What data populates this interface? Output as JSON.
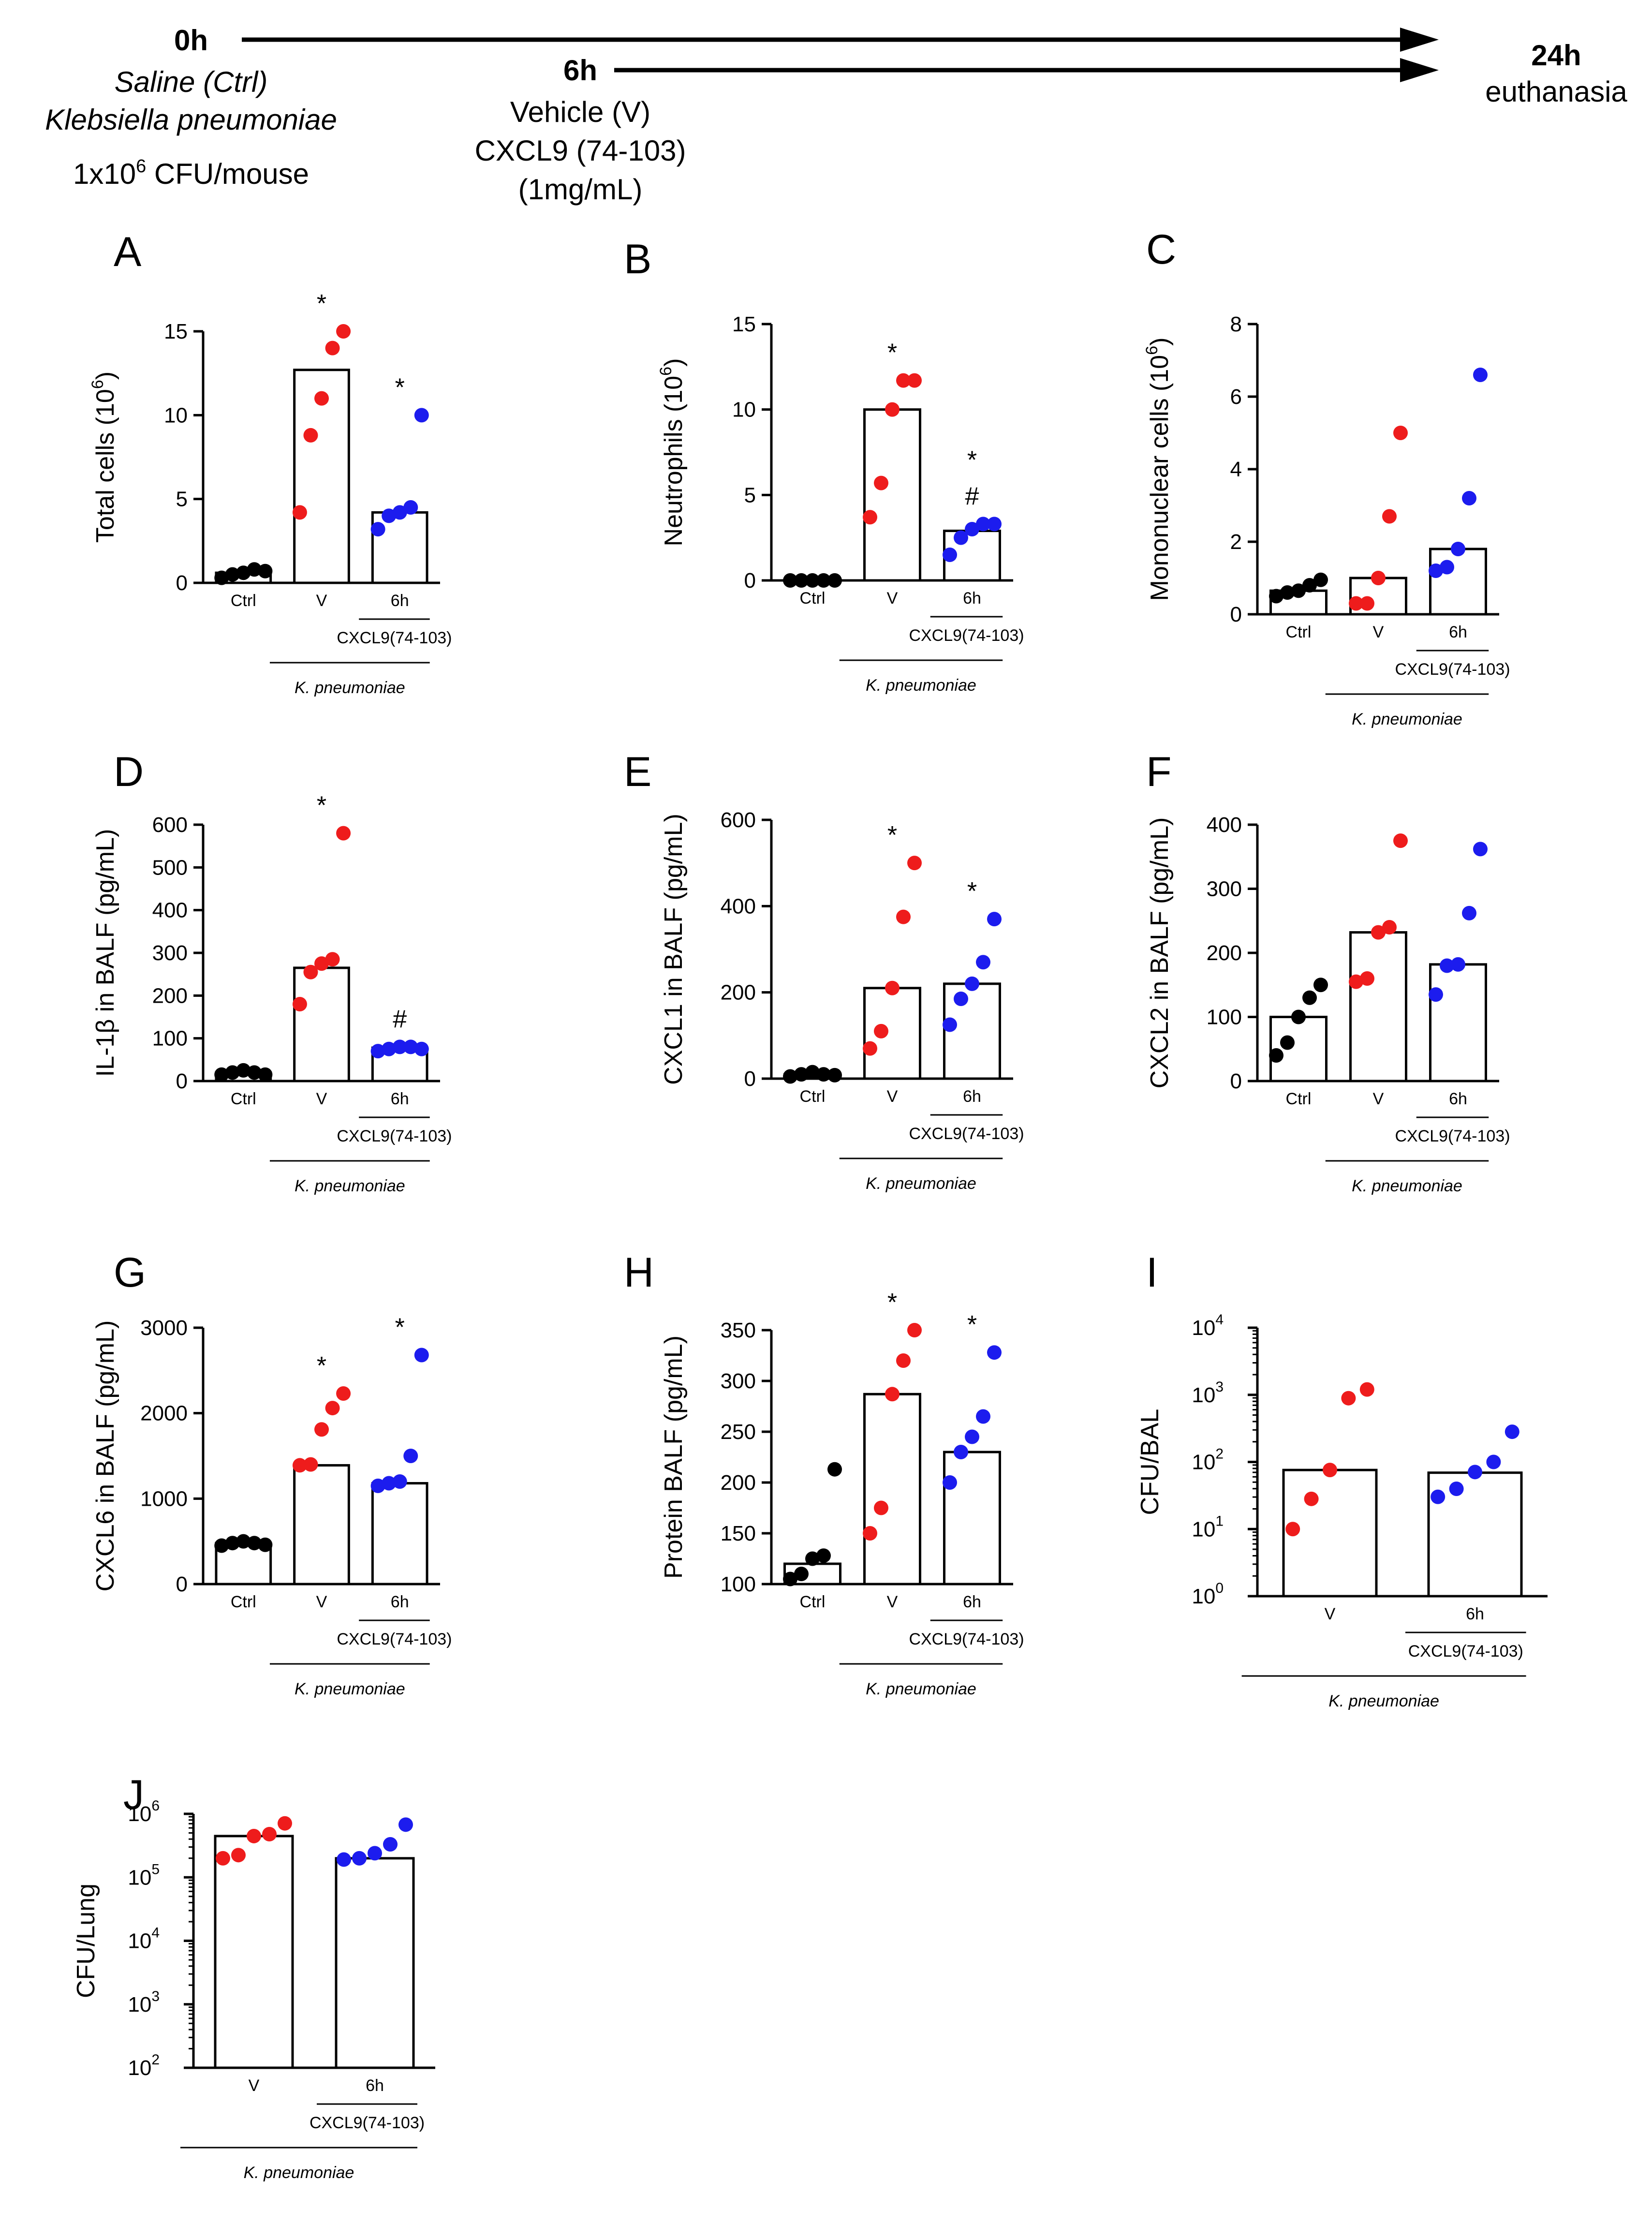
{
  "colors": {
    "ctrl": "#000000",
    "vehicle": "#ee1c1c",
    "treated": "#1c1cee",
    "line": "#000000"
  },
  "timeline": {
    "t0": {
      "time": "0h",
      "lines": [
        "Saline (Ctrl)",
        "Klebsiella pneumoniae"
      ],
      "dose_prefix": "1x10",
      "dose_exp": "6",
      "dose_suffix": " CFU/mouse"
    },
    "t6": {
      "time": "6h",
      "lines": [
        "Vehicle (V)",
        "CXCL9 (74-103)",
        "(1mg/mL)"
      ]
    },
    "t24": {
      "time": "24h",
      "label": "euthanasia"
    }
  },
  "common": {
    "ctrl_label": "Ctrl",
    "v_label": "V",
    "h6_label": "6h",
    "treatment_label": "CXCL9(74-103)",
    "infection_label": "K. pneumoniae"
  },
  "chart_data": [
    {
      "letter": "A",
      "type": "bar",
      "ylabel": "Total cells (10^6)",
      "ylim": [
        0,
        15
      ],
      "yticks": [
        0,
        5,
        10,
        15
      ],
      "scale": "linear",
      "categories": [
        "Ctrl",
        "V",
        "6h"
      ],
      "bars": [
        0.6,
        12.7,
        4.2
      ],
      "points": [
        [
          0.3,
          0.5,
          0.6,
          0.8,
          0.7
        ],
        [
          4.2,
          8.8,
          11.0,
          14.0,
          15.0
        ],
        [
          3.2,
          4.0,
          4.2,
          4.5,
          10.0
        ]
      ],
      "annotations": [
        [],
        [
          "*"
        ],
        [
          "*"
        ]
      ]
    },
    {
      "letter": "B",
      "type": "bar",
      "ylabel": "Neutrophils (10^6)",
      "ylim": [
        0,
        15
      ],
      "yticks": [
        0,
        5,
        10,
        15
      ],
      "scale": "linear",
      "categories": [
        "Ctrl",
        "V",
        "6h"
      ],
      "bars": [
        0,
        10.0,
        2.9
      ],
      "points": [
        [
          0,
          0,
          0,
          0,
          0
        ],
        [
          3.7,
          5.7,
          10.0,
          11.7,
          11.7
        ],
        [
          1.5,
          2.5,
          3.0,
          3.3,
          3.3
        ]
      ],
      "annotations": [
        [],
        [
          "*"
        ],
        [
          "*",
          "#"
        ]
      ]
    },
    {
      "letter": "C",
      "type": "bar",
      "ylabel": "Mononuclear cells (10^6)",
      "ylim": [
        0,
        8
      ],
      "yticks": [
        0,
        2,
        4,
        6,
        8
      ],
      "scale": "linear",
      "categories": [
        "Ctrl",
        "V",
        "6h"
      ],
      "bars": [
        0.65,
        1.0,
        1.8
      ],
      "points": [
        [
          0.5,
          0.6,
          0.65,
          0.8,
          0.95
        ],
        [
          0.3,
          0.3,
          1.0,
          2.7,
          5.0
        ],
        [
          1.2,
          1.3,
          1.8,
          3.2,
          6.6
        ]
      ],
      "annotations": [
        [],
        [],
        []
      ]
    },
    {
      "letter": "D",
      "type": "bar",
      "ylabel": "IL-1β in BALF (pg/mL)",
      "ylim": [
        0,
        600
      ],
      "yticks": [
        0,
        100,
        200,
        300,
        400,
        500,
        600
      ],
      "scale": "linear",
      "categories": [
        "Ctrl",
        "V",
        "6h"
      ],
      "bars": [
        20,
        265,
        78
      ],
      "points": [
        [
          15,
          20,
          25,
          20,
          15
        ],
        [
          180,
          255,
          275,
          285,
          580
        ],
        [
          70,
          75,
          80,
          80,
          75
        ]
      ],
      "annotations": [
        [],
        [
          "*"
        ],
        [
          "#"
        ]
      ]
    },
    {
      "letter": "E",
      "type": "bar",
      "ylabel": "CXCL1 in BALF (pg/mL)",
      "ylim": [
        0,
        600
      ],
      "yticks": [
        0,
        200,
        400,
        600
      ],
      "scale": "linear",
      "categories": [
        "Ctrl",
        "V",
        "6h"
      ],
      "bars": [
        10,
        210,
        220
      ],
      "points": [
        [
          5,
          10,
          15,
          10,
          8
        ],
        [
          70,
          110,
          210,
          375,
          500
        ],
        [
          125,
          185,
          220,
          270,
          370
        ]
      ],
      "annotations": [
        [],
        [
          "*"
        ],
        [
          "*"
        ]
      ]
    },
    {
      "letter": "F",
      "type": "bar",
      "ylabel": "CXCL2 in BALF (pg/mL)",
      "ylim": [
        0,
        400
      ],
      "yticks": [
        0,
        100,
        200,
        300,
        400
      ],
      "scale": "linear",
      "categories": [
        "Ctrl",
        "V",
        "6h"
      ],
      "bars": [
        100,
        232,
        182
      ],
      "points": [
        [
          40,
          60,
          100,
          130,
          150
        ],
        [
          155,
          160,
          232,
          240,
          375
        ],
        [
          135,
          180,
          182,
          262,
          362
        ]
      ],
      "annotations": [
        [],
        [],
        []
      ]
    },
    {
      "letter": "G",
      "type": "bar",
      "ylabel": "CXCL6 in BALF (pg/mL)",
      "ylim": [
        0,
        3000
      ],
      "yticks": [
        0,
        1000,
        2000,
        3000
      ],
      "scale": "linear",
      "categories": [
        "Ctrl",
        "V",
        "6h"
      ],
      "bars": [
        480,
        1390,
        1180
      ],
      "points": [
        [
          450,
          480,
          500,
          480,
          460
        ],
        [
          1390,
          1400,
          1810,
          2060,
          2230
        ],
        [
          1150,
          1180,
          1200,
          1500,
          2680
        ]
      ],
      "annotations": [
        [],
        [
          "*"
        ],
        [
          "*"
        ]
      ]
    },
    {
      "letter": "H",
      "type": "bar",
      "ylabel": "Protein BALF (pg/mL)",
      "ylim": [
        100,
        350
      ],
      "yticks": [
        100,
        150,
        200,
        250,
        300,
        350
      ],
      "scale": "linear",
      "categories": [
        "Ctrl",
        "V",
        "6h"
      ],
      "bars": [
        120,
        287,
        230
      ],
      "points": [
        [
          105,
          110,
          125,
          128,
          213
        ],
        [
          150,
          175,
          287,
          320,
          350
        ],
        [
          200,
          230,
          245,
          265,
          328
        ]
      ],
      "annotations": [
        [],
        [
          "*"
        ],
        [
          "*"
        ]
      ]
    },
    {
      "letter": "I",
      "type": "bar",
      "ylabel": "CFU/BAL",
      "ylim": [
        0,
        4
      ],
      "scale": "log10",
      "ytick_labels": [
        {
          "base": "10",
          "exp": "0"
        },
        {
          "base": "10",
          "exp": "1"
        },
        {
          "base": "10",
          "exp": "2"
        },
        {
          "base": "10",
          "exp": "3"
        },
        {
          "base": "10",
          "exp": "4"
        }
      ],
      "categories": [
        "V",
        "6h"
      ],
      "bars": [
        1.88,
        1.84
      ],
      "points": [
        [
          1.0,
          1.45,
          1.88,
          2.95,
          3.08
        ],
        [
          1.48,
          1.6,
          1.85,
          2.0,
          2.45
        ]
      ],
      "annotations": [
        [],
        []
      ]
    },
    {
      "letter": "J",
      "type": "bar",
      "ylabel": "CFU/Lung",
      "ylim": [
        2,
        6
      ],
      "scale": "log10",
      "ytick_labels": [
        {
          "base": "10",
          "exp": "2"
        },
        {
          "base": "10",
          "exp": "3"
        },
        {
          "base": "10",
          "exp": "4"
        },
        {
          "base": "10",
          "exp": "5"
        },
        {
          "base": "10",
          "exp": "6"
        }
      ],
      "categories": [
        "V",
        "6h"
      ],
      "bars": [
        5.65,
        5.3
      ],
      "points": [
        [
          5.3,
          5.35,
          5.65,
          5.68,
          5.85
        ],
        [
          5.28,
          5.3,
          5.38,
          5.52,
          5.83
        ]
      ],
      "annotations": [
        [],
        []
      ]
    }
  ]
}
